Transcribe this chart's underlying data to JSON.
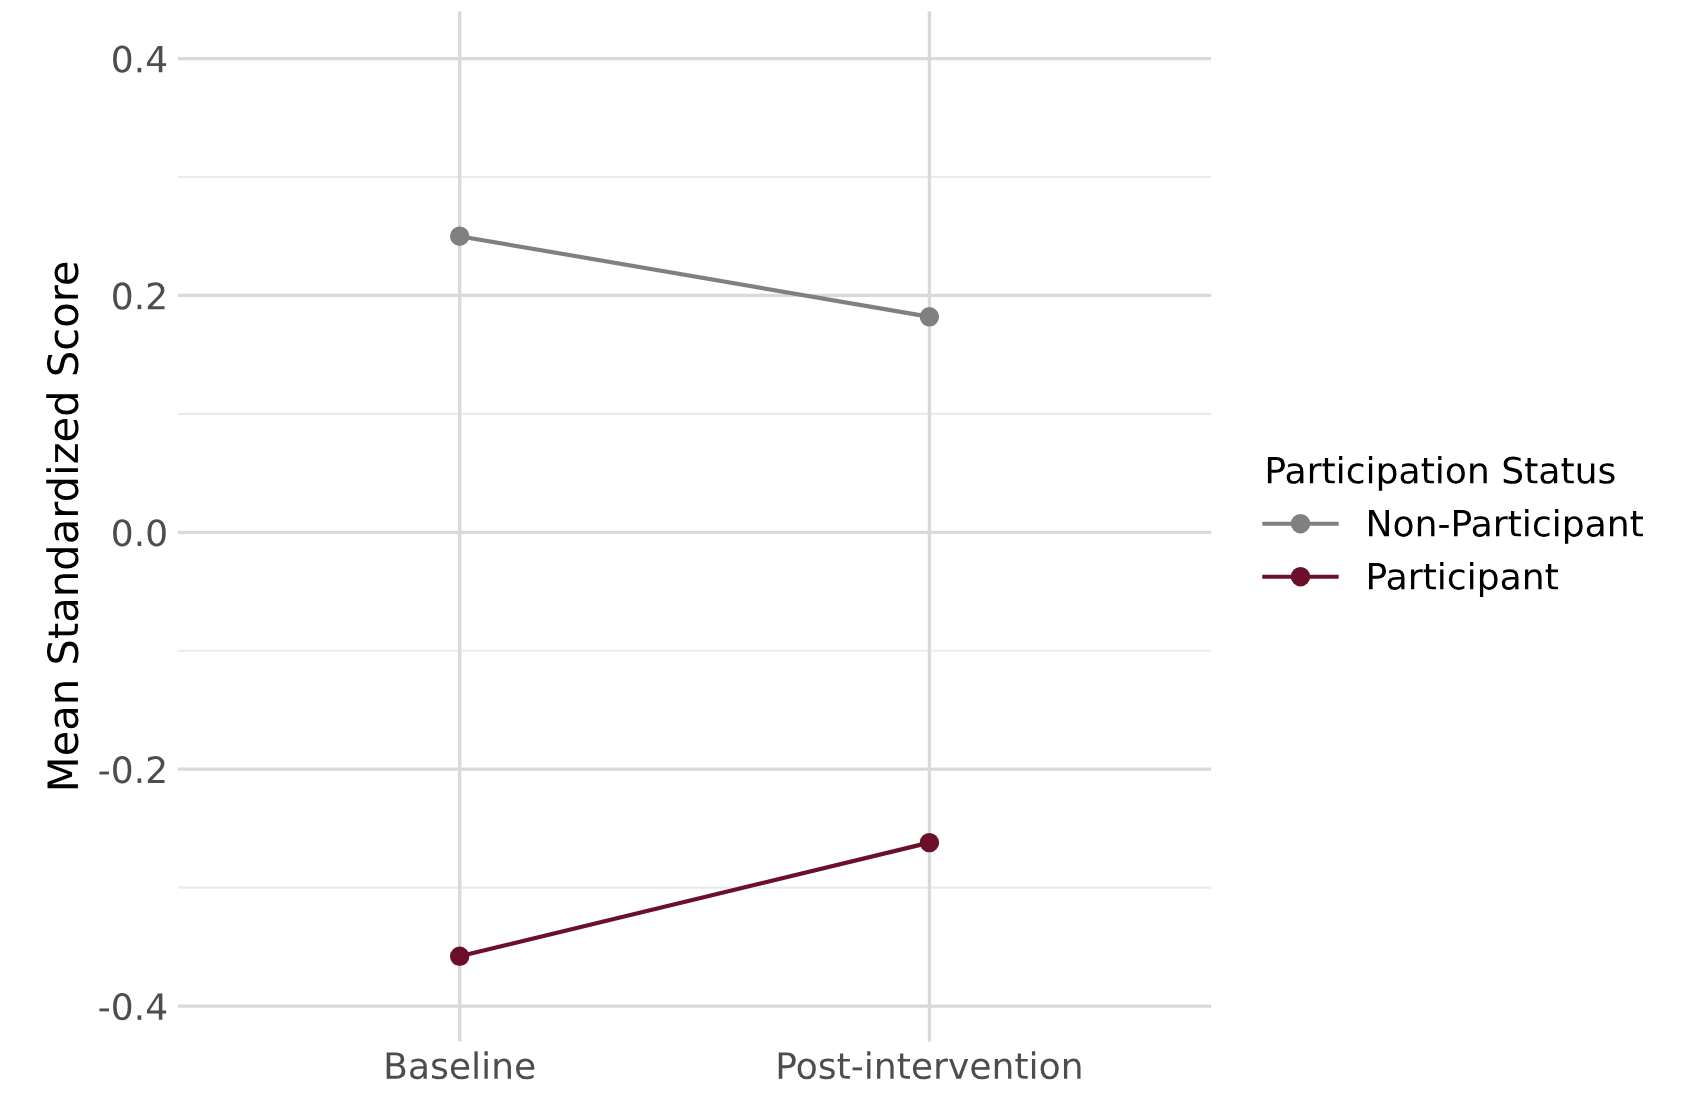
{
  "chart_data": {
    "type": "line",
    "ylabel": "Mean Standardized Score",
    "legend_title": "Participation Status",
    "categories": [
      "Baseline",
      "Post-intervention"
    ],
    "series": [
      {
        "name": "Non-Participant",
        "color": "#808080",
        "values": [
          0.25,
          0.182
        ]
      },
      {
        "name": "Participant",
        "color": "#6b0f2a",
        "values": [
          -0.358,
          -0.262
        ]
      }
    ],
    "ylim": [
      -0.43,
      0.44
    ],
    "yticks": [
      {
        "value": -0.4,
        "label": "-0.4"
      },
      {
        "value": -0.2,
        "label": "-0.2"
      },
      {
        "value": 0,
        "label": "0.0"
      },
      {
        "value": 0.2,
        "label": "0.2"
      },
      {
        "value": 0.4,
        "label": "0.4"
      }
    ],
    "grid": true,
    "legend": "right",
    "marker": "circle",
    "line_style": "solid"
  }
}
